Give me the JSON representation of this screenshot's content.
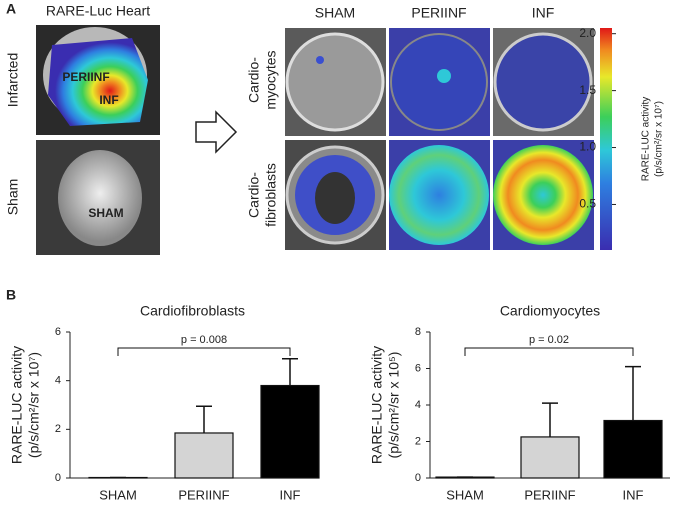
{
  "panel_a": {
    "label": "A",
    "heart_title": "RARE-Luc Heart",
    "row_labels": [
      "Infarcted",
      "Sham"
    ],
    "heart_labels": {
      "periinf": "PERIINF",
      "inf": "INF",
      "sham": "SHAM"
    },
    "columns": [
      "SHAM",
      "PERIINF",
      "INF"
    ],
    "cell_rows": [
      [
        "Cardio-",
        "myocytes"
      ],
      [
        "Cardio-",
        "fibroblasts"
      ]
    ],
    "colorbar": {
      "label": [
        "RARE-LUC activity",
        "(p/s/cm²/sr x 10⁷)"
      ],
      "lim": [
        0.1,
        2.05
      ],
      "ticks": [
        {
          "value": 2,
          "label": "2.0"
        },
        {
          "value": 1.5,
          "label": "1.5"
        },
        {
          "value": 1,
          "label": "1.0"
        },
        {
          "value": 0.5,
          "label": "0.5"
        }
      ]
    }
  },
  "panel_b_label": "B",
  "chart_data": [
    {
      "type": "bar",
      "title": "Cardiofibroblasts",
      "y_label": [
        "RARE-LUC activity",
        "(p/s/cm²/sr x 10⁷)"
      ],
      "categories": [
        "SHAM",
        "PERIINF",
        "INF"
      ],
      "values": [
        0.02,
        1.85,
        3.8
      ],
      "errors": [
        0,
        1.1,
        1.1
      ],
      "colors": [
        "#ffffff",
        "#d4d4d4",
        "#000000"
      ],
      "ylim": [
        0,
        6
      ],
      "yticks": [
        0,
        2,
        4,
        6
      ],
      "annotation": "p = 0.008"
    },
    {
      "type": "bar",
      "title": "Cardiomyocytes",
      "y_label": [
        "RARE-LUC activity",
        "(p/s/cm²/sr x 10⁵)"
      ],
      "categories": [
        "SHAM",
        "PERIINF",
        "INF"
      ],
      "values": [
        0.05,
        2.25,
        3.15
      ],
      "errors": [
        0,
        1.85,
        2.95
      ],
      "colors": [
        "#ffffff",
        "#d4d4d4",
        "#000000"
      ],
      "ylim": [
        0,
        8
      ],
      "yticks": [
        0,
        2,
        4,
        6,
        8
      ],
      "annotation": "p = 0.02"
    }
  ]
}
